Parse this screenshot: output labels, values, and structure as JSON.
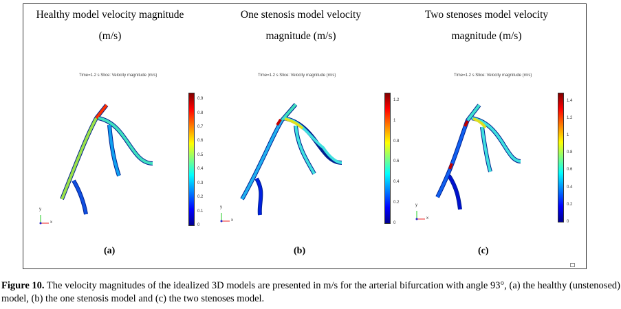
{
  "panels": [
    {
      "title": "Healthy model velocity magnitude (m/s)",
      "subtitle": "Time=1.2 s   Slice: Velocity magnitude (m/s)",
      "label": "(a)",
      "ticks": [
        "0",
        "0.1",
        "0.2",
        "0.3",
        "0.4",
        "0.5",
        "0.6",
        "0.7",
        "0.8",
        "0.9"
      ],
      "max": 0.95
    },
    {
      "title": "One stenosis model velocity magnitude (m/s)",
      "subtitle": "Time=1.2 s   Slice: Velocity magnitude (m/s)",
      "label": "(b)",
      "ticks": [
        "0",
        "0.2",
        "0.4",
        "0.6",
        "0.8",
        "1",
        "1.2"
      ],
      "max": 1.28
    },
    {
      "title": "Two stenoses model velocity magnitude (m/s)",
      "subtitle": "Time=1.2 s   Slice: Velocity magnitude (m/s)",
      "label": "(c)",
      "ticks": [
        "0",
        "0.2",
        "0.4",
        "0.6",
        "0.8",
        "1",
        "1.2",
        "1.4"
      ],
      "max": 1.5
    }
  ],
  "axis": {
    "x": "x",
    "y": "y"
  },
  "caption": {
    "figure": "Figure 10.",
    "text": " The velocity magnitudes of the idealized 3D models are presented in m/s for the arterial bifurcation with angle 93°, (a) the healthy (unstenosed) model, (b) the one stenosis model and (c) the two stenoses model."
  }
}
